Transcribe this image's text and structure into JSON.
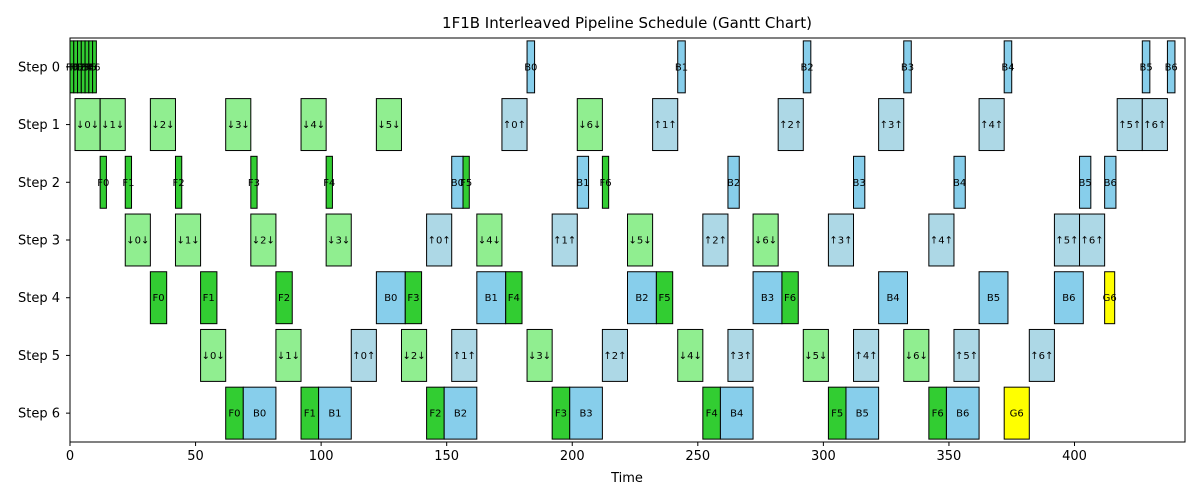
{
  "chart_data": {
    "type": "gantt",
    "title": "1F1B Interleaved Pipeline Schedule (Gantt Chart)",
    "xlabel": "Time",
    "ylabel": "",
    "xlim": [
      0,
      444
    ],
    "xticks": [
      0,
      50,
      100,
      150,
      200,
      250,
      300,
      350,
      400
    ],
    "rows": [
      "Step 0",
      "Step 1",
      "Step 2",
      "Step 3",
      "Step 4",
      "Step 5",
      "Step 6"
    ],
    "colors": {
      "forward": "#32cd32",
      "backward": "#87ceeb",
      "send_forward": "#90ee90",
      "send_backward": "#add8e6",
      "grad": "#ffff00"
    },
    "tasks": [
      {
        "row": 0,
        "start": 0,
        "end": 1.5,
        "kind": "forward",
        "label": "F0"
      },
      {
        "row": 0,
        "start": 1.5,
        "end": 3,
        "kind": "forward",
        "label": "F1"
      },
      {
        "row": 0,
        "start": 3,
        "end": 4.5,
        "kind": "forward",
        "label": "F2"
      },
      {
        "row": 0,
        "start": 4.5,
        "end": 6,
        "kind": "forward",
        "label": "F3"
      },
      {
        "row": 0,
        "start": 6,
        "end": 7.5,
        "kind": "forward",
        "label": "F4"
      },
      {
        "row": 0,
        "start": 7.5,
        "end": 9,
        "kind": "forward",
        "label": "F5"
      },
      {
        "row": 0,
        "start": 9,
        "end": 10.5,
        "kind": "forward",
        "label": "F6"
      },
      {
        "row": 0,
        "start": 182,
        "end": 185,
        "kind": "backward",
        "label": "B0"
      },
      {
        "row": 0,
        "start": 242,
        "end": 245,
        "kind": "backward",
        "label": "B1"
      },
      {
        "row": 0,
        "start": 292,
        "end": 295,
        "kind": "backward",
        "label": "B2"
      },
      {
        "row": 0,
        "start": 332,
        "end": 335,
        "kind": "backward",
        "label": "B3"
      },
      {
        "row": 0,
        "start": 372,
        "end": 375,
        "kind": "backward",
        "label": "B4"
      },
      {
        "row": 0,
        "start": 427,
        "end": 430,
        "kind": "backward",
        "label": "B5"
      },
      {
        "row": 0,
        "start": 437,
        "end": 440,
        "kind": "backward",
        "label": "B6"
      },
      {
        "row": 1,
        "start": 2,
        "end": 12,
        "kind": "send_forward",
        "label": "↓0↓"
      },
      {
        "row": 1,
        "start": 12,
        "end": 22,
        "kind": "send_forward",
        "label": "↓1↓"
      },
      {
        "row": 1,
        "start": 32,
        "end": 42,
        "kind": "send_forward",
        "label": "↓2↓"
      },
      {
        "row": 1,
        "start": 62,
        "end": 72,
        "kind": "send_forward",
        "label": "↓3↓"
      },
      {
        "row": 1,
        "start": 92,
        "end": 102,
        "kind": "send_forward",
        "label": "↓4↓"
      },
      {
        "row": 1,
        "start": 122,
        "end": 132,
        "kind": "send_forward",
        "label": "↓5↓"
      },
      {
        "row": 1,
        "start": 172,
        "end": 182,
        "kind": "send_backward",
        "label": "↑0↑"
      },
      {
        "row": 1,
        "start": 202,
        "end": 212,
        "kind": "send_forward",
        "label": "↓6↓"
      },
      {
        "row": 1,
        "start": 232,
        "end": 242,
        "kind": "send_backward",
        "label": "↑1↑"
      },
      {
        "row": 1,
        "start": 282,
        "end": 292,
        "kind": "send_backward",
        "label": "↑2↑"
      },
      {
        "row": 1,
        "start": 322,
        "end": 332,
        "kind": "send_backward",
        "label": "↑3↑"
      },
      {
        "row": 1,
        "start": 362,
        "end": 372,
        "kind": "send_backward",
        "label": "↑4↑"
      },
      {
        "row": 1,
        "start": 417,
        "end": 427,
        "kind": "send_backward",
        "label": "↑5↑"
      },
      {
        "row": 1,
        "start": 427,
        "end": 437,
        "kind": "send_backward",
        "label": "↑6↑"
      },
      {
        "row": 2,
        "start": 12,
        "end": 14.5,
        "kind": "forward",
        "label": "F0"
      },
      {
        "row": 2,
        "start": 22,
        "end": 24.5,
        "kind": "forward",
        "label": "F1"
      },
      {
        "row": 2,
        "start": 42,
        "end": 44.5,
        "kind": "forward",
        "label": "F2"
      },
      {
        "row": 2,
        "start": 72,
        "end": 74.5,
        "kind": "forward",
        "label": "F3"
      },
      {
        "row": 2,
        "start": 102,
        "end": 104.5,
        "kind": "forward",
        "label": "F4"
      },
      {
        "row": 2,
        "start": 152,
        "end": 156.5,
        "kind": "backward",
        "label": "B0"
      },
      {
        "row": 2,
        "start": 156.5,
        "end": 159,
        "kind": "forward",
        "label": "F5"
      },
      {
        "row": 2,
        "start": 202,
        "end": 206.5,
        "kind": "backward",
        "label": "B1"
      },
      {
        "row": 2,
        "start": 212,
        "end": 214.5,
        "kind": "forward",
        "label": "F6"
      },
      {
        "row": 2,
        "start": 262,
        "end": 266.5,
        "kind": "backward",
        "label": "B2"
      },
      {
        "row": 2,
        "start": 312,
        "end": 316.5,
        "kind": "backward",
        "label": "B3"
      },
      {
        "row": 2,
        "start": 352,
        "end": 356.5,
        "kind": "backward",
        "label": "B4"
      },
      {
        "row": 2,
        "start": 402,
        "end": 406.5,
        "kind": "backward",
        "label": "B5"
      },
      {
        "row": 2,
        "start": 412,
        "end": 416.5,
        "kind": "backward",
        "label": "B6"
      },
      {
        "row": 3,
        "start": 22,
        "end": 32,
        "kind": "send_forward",
        "label": "↓0↓"
      },
      {
        "row": 3,
        "start": 42,
        "end": 52,
        "kind": "send_forward",
        "label": "↓1↓"
      },
      {
        "row": 3,
        "start": 72,
        "end": 82,
        "kind": "send_forward",
        "label": "↓2↓"
      },
      {
        "row": 3,
        "start": 102,
        "end": 112,
        "kind": "send_forward",
        "label": "↓3↓"
      },
      {
        "row": 3,
        "start": 142,
        "end": 152,
        "kind": "send_backward",
        "label": "↑0↑"
      },
      {
        "row": 3,
        "start": 162,
        "end": 172,
        "kind": "send_forward",
        "label": "↓4↓"
      },
      {
        "row": 3,
        "start": 192,
        "end": 202,
        "kind": "send_backward",
        "label": "↑1↑"
      },
      {
        "row": 3,
        "start": 222,
        "end": 232,
        "kind": "send_forward",
        "label": "↓5↓"
      },
      {
        "row": 3,
        "start": 252,
        "end": 262,
        "kind": "send_backward",
        "label": "↑2↑"
      },
      {
        "row": 3,
        "start": 272,
        "end": 282,
        "kind": "send_forward",
        "label": "↓6↓"
      },
      {
        "row": 3,
        "start": 302,
        "end": 312,
        "kind": "send_backward",
        "label": "↑3↑"
      },
      {
        "row": 3,
        "start": 342,
        "end": 352,
        "kind": "send_backward",
        "label": "↑4↑"
      },
      {
        "row": 3,
        "start": 392,
        "end": 402,
        "kind": "send_backward",
        "label": "↑5↑"
      },
      {
        "row": 3,
        "start": 402,
        "end": 412,
        "kind": "send_backward",
        "label": "↑6↑"
      },
      {
        "row": 4,
        "start": 32,
        "end": 38.5,
        "kind": "forward",
        "label": "F0"
      },
      {
        "row": 4,
        "start": 52,
        "end": 58.5,
        "kind": "forward",
        "label": "F1"
      },
      {
        "row": 4,
        "start": 82,
        "end": 88.5,
        "kind": "forward",
        "label": "F2"
      },
      {
        "row": 4,
        "start": 122,
        "end": 133.5,
        "kind": "backward",
        "label": "B0"
      },
      {
        "row": 4,
        "start": 133.5,
        "end": 140,
        "kind": "forward",
        "label": "F3"
      },
      {
        "row": 4,
        "start": 162,
        "end": 173.5,
        "kind": "backward",
        "label": "B1"
      },
      {
        "row": 4,
        "start": 173.5,
        "end": 180,
        "kind": "forward",
        "label": "F4"
      },
      {
        "row": 4,
        "start": 222,
        "end": 233.5,
        "kind": "backward",
        "label": "B2"
      },
      {
        "row": 4,
        "start": 233.5,
        "end": 240,
        "kind": "forward",
        "label": "F5"
      },
      {
        "row": 4,
        "start": 272,
        "end": 283.5,
        "kind": "backward",
        "label": "B3"
      },
      {
        "row": 4,
        "start": 283.5,
        "end": 290,
        "kind": "forward",
        "label": "F6"
      },
      {
        "row": 4,
        "start": 322,
        "end": 333.5,
        "kind": "backward",
        "label": "B4"
      },
      {
        "row": 4,
        "start": 362,
        "end": 373.5,
        "kind": "backward",
        "label": "B5"
      },
      {
        "row": 4,
        "start": 392,
        "end": 403.5,
        "kind": "backward",
        "label": "B6"
      },
      {
        "row": 4,
        "start": 412,
        "end": 416,
        "kind": "grad",
        "label": "G6"
      },
      {
        "row": 5,
        "start": 52,
        "end": 62,
        "kind": "send_forward",
        "label": "↓0↓"
      },
      {
        "row": 5,
        "start": 82,
        "end": 92,
        "kind": "send_forward",
        "label": "↓1↓"
      },
      {
        "row": 5,
        "start": 112,
        "end": 122,
        "kind": "send_backward",
        "label": "↑0↑"
      },
      {
        "row": 5,
        "start": 132,
        "end": 142,
        "kind": "send_forward",
        "label": "↓2↓"
      },
      {
        "row": 5,
        "start": 152,
        "end": 162,
        "kind": "send_backward",
        "label": "↑1↑"
      },
      {
        "row": 5,
        "start": 182,
        "end": 192,
        "kind": "send_forward",
        "label": "↓3↓"
      },
      {
        "row": 5,
        "start": 212,
        "end": 222,
        "kind": "send_backward",
        "label": "↑2↑"
      },
      {
        "row": 5,
        "start": 242,
        "end": 252,
        "kind": "send_forward",
        "label": "↓4↓"
      },
      {
        "row": 5,
        "start": 262,
        "end": 272,
        "kind": "send_backward",
        "label": "↑3↑"
      },
      {
        "row": 5,
        "start": 292,
        "end": 302,
        "kind": "send_forward",
        "label": "↓5↓"
      },
      {
        "row": 5,
        "start": 312,
        "end": 322,
        "kind": "send_backward",
        "label": "↑4↑"
      },
      {
        "row": 5,
        "start": 332,
        "end": 342,
        "kind": "send_forward",
        "label": "↓6↓"
      },
      {
        "row": 5,
        "start": 352,
        "end": 362,
        "kind": "send_backward",
        "label": "↑5↑"
      },
      {
        "row": 5,
        "start": 382,
        "end": 392,
        "kind": "send_backward",
        "label": "↑6↑"
      },
      {
        "row": 6,
        "start": 62,
        "end": 69,
        "kind": "forward",
        "label": "F0"
      },
      {
        "row": 6,
        "start": 69,
        "end": 82,
        "kind": "backward",
        "label": "B0"
      },
      {
        "row": 6,
        "start": 92,
        "end": 99,
        "kind": "forward",
        "label": "F1"
      },
      {
        "row": 6,
        "start": 99,
        "end": 112,
        "kind": "backward",
        "label": "B1"
      },
      {
        "row": 6,
        "start": 142,
        "end": 149,
        "kind": "forward",
        "label": "F2"
      },
      {
        "row": 6,
        "start": 149,
        "end": 162,
        "kind": "backward",
        "label": "B2"
      },
      {
        "row": 6,
        "start": 192,
        "end": 199,
        "kind": "forward",
        "label": "F3"
      },
      {
        "row": 6,
        "start": 199,
        "end": 212,
        "kind": "backward",
        "label": "B3"
      },
      {
        "row": 6,
        "start": 252,
        "end": 259,
        "kind": "forward",
        "label": "F4"
      },
      {
        "row": 6,
        "start": 259,
        "end": 272,
        "kind": "backward",
        "label": "B4"
      },
      {
        "row": 6,
        "start": 302,
        "end": 309,
        "kind": "forward",
        "label": "F5"
      },
      {
        "row": 6,
        "start": 309,
        "end": 322,
        "kind": "backward",
        "label": "B5"
      },
      {
        "row": 6,
        "start": 342,
        "end": 349,
        "kind": "forward",
        "label": "F6"
      },
      {
        "row": 6,
        "start": 349,
        "end": 362,
        "kind": "backward",
        "label": "B6"
      },
      {
        "row": 6,
        "start": 372,
        "end": 382,
        "kind": "grad",
        "label": "G6"
      }
    ]
  }
}
